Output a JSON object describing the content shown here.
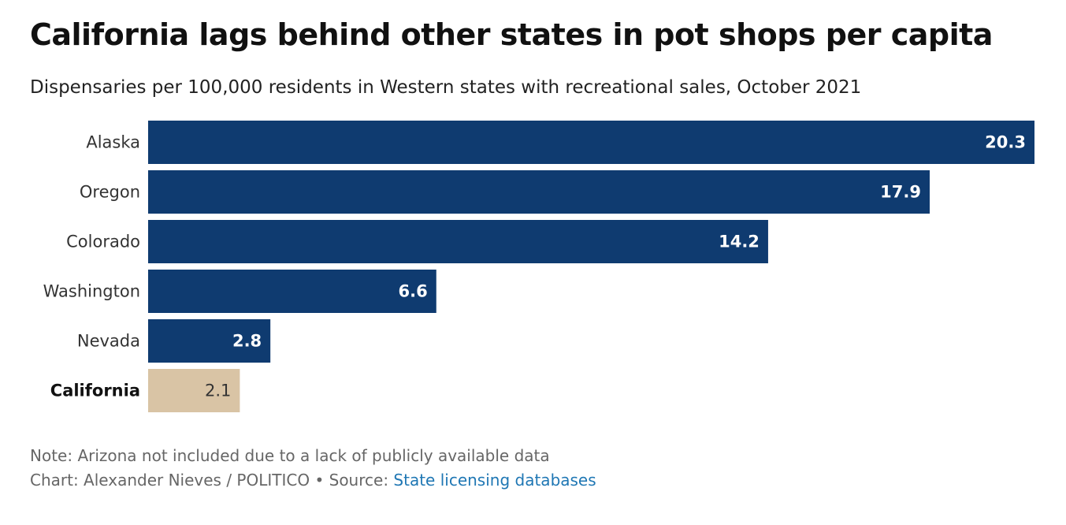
{
  "header": {
    "title": "California lags behind other states in pot shops per capita",
    "subtitle": "Dispensaries per 100,000 residents in Western states with recreational sales, October 2021"
  },
  "chart_data": {
    "type": "bar",
    "orientation": "horizontal",
    "title": "California lags behind other states in pot shops per capita",
    "subtitle": "Dispensaries per 100,000 residents in Western states with recreational sales, October 2021",
    "categories": [
      "Alaska",
      "Oregon",
      "Colorado",
      "Washington",
      "Nevada",
      "California"
    ],
    "values": [
      20.3,
      17.9,
      14.2,
      6.6,
      2.8,
      2.1
    ],
    "value_labels": [
      "20.3",
      "17.9",
      "14.2",
      "6.6",
      "2.8",
      "2.1"
    ],
    "highlight": "California",
    "xlim": [
      0,
      20.3
    ],
    "grid": false,
    "xlabel": "",
    "ylabel": ""
  },
  "colors": {
    "bar": "#0f3b70",
    "highlight_bar": "#d9c4a5"
  },
  "footer": {
    "note": "Note: Arizona not included due to a lack of publicly available data",
    "credit": "Chart: Alexander Nieves / POLITICO",
    "separator": "•",
    "source_prefix": "Source:",
    "source_link": "State licensing databases"
  }
}
